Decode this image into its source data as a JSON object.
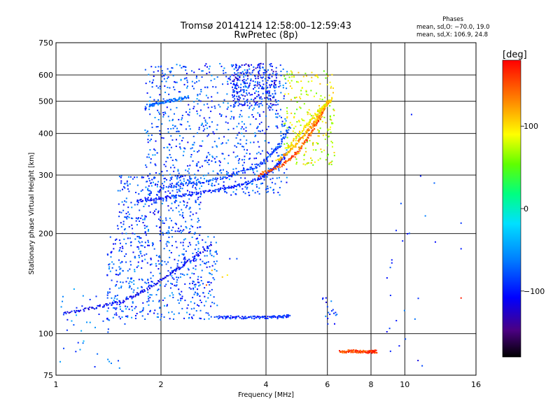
{
  "chart_data": {
    "type": "scatter",
    "title": "Tromsø 20141214 12:58:00–12:59:43",
    "subtitle": "RwPretec (8p)",
    "xlabel": "Frequency [MHz]",
    "ylabel": "Stationary phase Virtual Height [km]",
    "x_scale": "log2",
    "y_scale": "log",
    "xlim": [
      1,
      16
    ],
    "ylim": [
      75,
      750
    ],
    "x_ticks": [
      "1",
      "2",
      "4",
      "6",
      "8",
      "10",
      "16"
    ],
    "y_ticks": [
      "75",
      "100",
      "200",
      "300",
      "400",
      "500",
      "600",
      "750"
    ],
    "grid": true,
    "phase_box": {
      "title": "Phases",
      "line1": "mean, sd,O: −70.0, 19.0",
      "line2": "mean, sd,X: 106.9, 24.8"
    },
    "colorbar": {
      "label": "[deg]",
      "ticks": [
        "100",
        "0",
        "−100"
      ],
      "range": [
        -180,
        180
      ]
    },
    "traces": [
      {
        "x": [
          1.05,
          1.3,
          1.55,
          1.8,
          2.1,
          2.4,
          2.8
        ],
        "y": [
          115,
          120,
          125,
          135,
          150,
          165,
          185
        ],
        "phase": -110
      },
      {
        "x": [
          1.7,
          2.0,
          2.4,
          2.9,
          3.4,
          3.9,
          4.3,
          4.6
        ],
        "y": [
          250,
          255,
          262,
          270,
          280,
          295,
          320,
          350
        ],
        "phase": -100
      },
      {
        "x": [
          2.0,
          2.6,
          3.2,
          3.8,
          4.3,
          4.7
        ],
        "y": [
          275,
          285,
          300,
          320,
          360,
          420
        ],
        "phase": -85
      },
      {
        "x": [
          3.8,
          4.3,
          4.8,
          5.2,
          5.6,
          5.9
        ],
        "y": [
          300,
          315,
          340,
          380,
          430,
          480
        ],
        "phase": 150
      },
      {
        "x": [
          4.3,
          4.7,
          5.1,
          5.5,
          5.8,
          6.1
        ],
        "y": [
          330,
          355,
          390,
          430,
          470,
          500
        ],
        "phase": 120
      },
      {
        "x": [
          4.6,
          5.0,
          5.4,
          5.8,
          6.2
        ],
        "y": [
          360,
          400,
          440,
          480,
          510
        ],
        "phase": 95
      },
      {
        "x": [
          1.85,
          2.0,
          2.2,
          2.4
        ],
        "y": [
          485,
          495,
          505,
          515
        ],
        "phase": -70
      },
      {
        "x": [
          2.9,
          3.3,
          3.8,
          4.3,
          4.7
        ],
        "y": [
          112,
          112,
          112,
          112,
          113
        ],
        "phase": -95
      },
      {
        "x": [
          6.5,
          7.0,
          7.5,
          8.0,
          8.3
        ],
        "y": [
          88,
          88.5,
          88.5,
          88,
          88.5
        ],
        "phase": 160
      }
    ],
    "clouds": [
      {
        "x": [
          1.4,
          2.9
        ],
        "y": [
          110,
          200
        ],
        "phase": -80,
        "n": 520
      },
      {
        "x": [
          1.5,
          2.6
        ],
        "y": [
          200,
          300
        ],
        "phase": -85,
        "n": 300
      },
      {
        "x": [
          1.8,
          4.6
        ],
        "y": [
          260,
          650
        ],
        "phase": -80,
        "n": 800
      },
      {
        "x": [
          3.2,
          4.3
        ],
        "y": [
          480,
          650
        ],
        "phase": -100,
        "n": 260
      },
      {
        "x": [
          4.5,
          6.3
        ],
        "y": [
          320,
          620
        ],
        "phase": 80,
        "n": 220
      },
      {
        "x": [
          5.8,
          6.4
        ],
        "y": [
          105,
          130
        ],
        "phase": -90,
        "n": 18
      },
      {
        "x": [
          1.0,
          1.6
        ],
        "y": [
          78,
          140
        ],
        "phase": -70,
        "n": 50
      },
      {
        "x": [
          8.8,
          12.5
        ],
        "y": [
          80,
          550
        ],
        "phase": -90,
        "n": 26
      }
    ],
    "misc_points": [
      {
        "x": 3.15,
        "y": 168,
        "phase": -100
      },
      {
        "x": 3.3,
        "y": 168,
        "phase": -80
      },
      {
        "x": 2.8,
        "y": 155,
        "phase": 120
      },
      {
        "x": 3.0,
        "y": 148,
        "phase": 110
      },
      {
        "x": 3.1,
        "y": 150,
        "phase": 95
      },
      {
        "x": 2.7,
        "y": 140,
        "phase": 150
      },
      {
        "x": 14.5,
        "y": 128,
        "phase": 170
      },
      {
        "x": 14.5,
        "y": 180,
        "phase": -100
      },
      {
        "x": 14.5,
        "y": 215,
        "phase": -90
      }
    ]
  }
}
